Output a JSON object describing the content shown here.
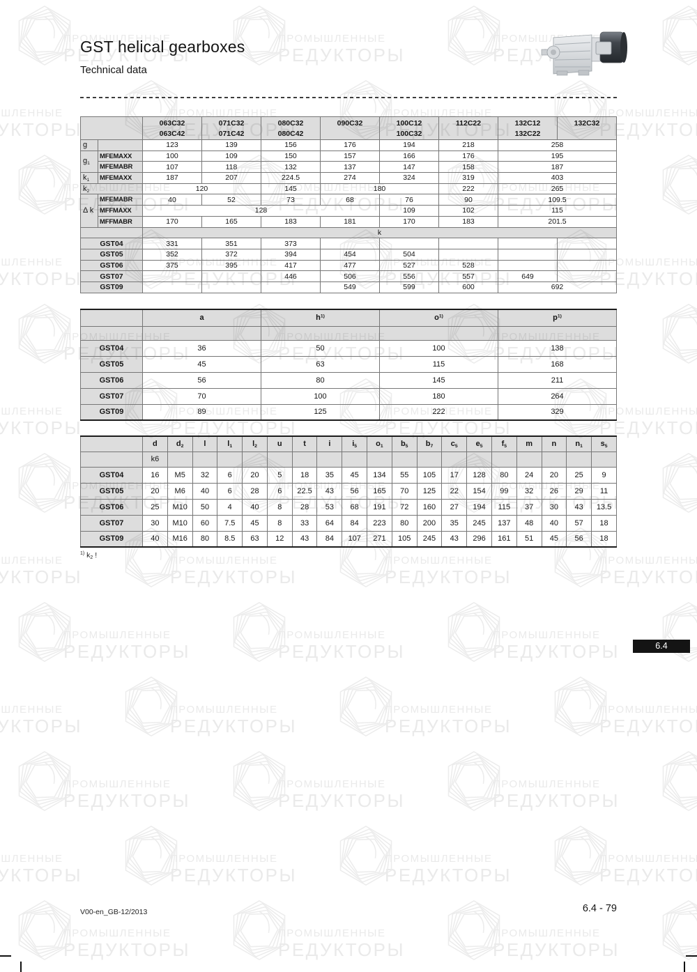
{
  "page": {
    "title": "GST helical gearboxes",
    "subtitle": "Technical data",
    "section_badge": "6.4",
    "footer_left": "V00-en_GB-12/2013",
    "footer_right": "6.4 - 79",
    "footnote": {
      "sup": "1)",
      "base": "k",
      "sub": "2",
      "tail": " !"
    }
  },
  "watermark": {
    "line1": "ПРОМЫШЛЕННЫЕ",
    "line2": "РЕДУКТОРЫ"
  },
  "table1": {
    "widths": [
      25,
      64,
      0,
      0,
      0,
      0,
      0,
      0,
      0,
      0
    ],
    "head": 1,
    "rows": [
      [
        {
          "t": "",
          "s": 2,
          "c": "e"
        },
        {
          "t": "063C32\n063C42",
          "c": "h"
        },
        {
          "t": "071C32\n071C42",
          "c": "h"
        },
        {
          "t": "080C32\n080C42",
          "c": "h"
        },
        {
          "t": "090C32",
          "c": "h"
        },
        {
          "t": "100C12\n100C32",
          "c": "h"
        },
        {
          "t": "112C22",
          "c": "h"
        },
        {
          "t": "132C12\n132C22",
          "c": "h"
        },
        {
          "t": "132C32",
          "c": "h"
        }
      ],
      [
        {
          "b": "g",
          "c": "l"
        },
        {
          "t": "",
          "c": "s"
        },
        "123",
        "139",
        "156",
        "176",
        "194",
        "218",
        {
          "t": "258",
          "s": 2
        }
      ],
      [
        {
          "b": "g",
          "sb": "1",
          "c": "l",
          "r": 2
        },
        {
          "t": "MFEMAXX",
          "c": "s"
        },
        "100",
        "109",
        "150",
        "157",
        "166",
        "176",
        {
          "t": "195",
          "s": 2
        }
      ],
      [
        {
          "t": "MFEMABR",
          "c": "s"
        },
        "107",
        "118",
        "132",
        "137",
        "147",
        "158",
        {
          "t": "187",
          "s": 2
        }
      ],
      [
        {
          "b": "k",
          "sb": "1",
          "c": "l"
        },
        {
          "t": "MFEMAXX",
          "c": "s"
        },
        "187",
        "207",
        "224.5",
        "274",
        "324",
        "319",
        {
          "t": "403",
          "s": 2
        }
      ],
      [
        {
          "b": "k",
          "sb": "2",
          "c": "l",
          "s": 2
        },
        {
          "t": "120",
          "s": 2
        },
        "145",
        {
          "t": "180",
          "s": 2
        },
        "222",
        {
          "t": "265",
          "s": 2
        }
      ],
      [
        {
          "b": "Δ k",
          "c": "l",
          "r": 3
        },
        {
          "t": "MFEMABR",
          "c": "s"
        },
        "40",
        "52",
        "73",
        "68",
        "76",
        "90",
        {
          "t": "109.5",
          "s": 2
        }
      ],
      [
        {
          "t": "MFFMAXX",
          "c": "s"
        },
        {
          "t": "128",
          "s": 4
        },
        "109",
        "102",
        {
          "t": "115",
          "s": 2
        }
      ],
      [
        {
          "t": "MFFMABR",
          "c": "s"
        },
        "170",
        "165",
        "183",
        "181",
        "170",
        "183",
        {
          "t": "201.5",
          "s": 2
        }
      ],
      [
        {
          "t": "",
          "s": 2,
          "c": "e"
        },
        {
          "t": "k",
          "s": 8,
          "c": "k"
        }
      ],
      [
        {
          "t": "GST04",
          "s": 2,
          "c": "g"
        },
        "331",
        "351",
        "373",
        "",
        "",
        "",
        "",
        ""
      ],
      [
        {
          "t": "GST05",
          "s": 2,
          "c": "g"
        },
        "352",
        "372",
        "394",
        "454",
        "504",
        "",
        "",
        ""
      ],
      [
        {
          "t": "GST06",
          "s": 2,
          "c": "g"
        },
        "375",
        "395",
        "417",
        "477",
        "527",
        "528",
        "",
        ""
      ],
      [
        {
          "t": "GST07",
          "s": 2,
          "c": "g"
        },
        "",
        "",
        "446",
        "506",
        "556",
        "557",
        "649",
        ""
      ],
      [
        {
          "t": "GST09",
          "s": 2,
          "c": "g"
        },
        "",
        "",
        "",
        "549",
        "599",
        "600",
        {
          "t": "692",
          "s": 2
        }
      ]
    ]
  },
  "table2": {
    "widths": [
      89,
      170,
      170,
      170,
      0
    ],
    "head": 2,
    "rows": [
      [
        {
          "t": "",
          "c": "e"
        },
        {
          "b": "a",
          "c": "h2"
        },
        {
          "b": "h",
          "sp": "1)",
          "c": "h2"
        },
        {
          "b": "o",
          "sp": "1)",
          "c": "h2"
        },
        {
          "b": "p",
          "sp": "1)",
          "c": "h2"
        }
      ],
      [
        {
          "t": "",
          "c": "e"
        },
        {
          "t": "",
          "c": "e"
        },
        {
          "t": "",
          "c": "e"
        },
        {
          "t": "",
          "c": "e"
        },
        {
          "t": "",
          "c": "e"
        }
      ],
      [
        {
          "t": "GST04",
          "c": "g"
        },
        "36",
        "50",
        "100",
        "138"
      ],
      [
        {
          "t": "GST05",
          "c": "g"
        },
        "45",
        "63",
        "115",
        "168"
      ],
      [
        {
          "t": "GST06",
          "c": "g"
        },
        "56",
        "80",
        "145",
        "211"
      ],
      [
        {
          "t": "GST07",
          "c": "g"
        },
        "70",
        "100",
        "180",
        "264"
      ],
      [
        {
          "t": "GST09",
          "c": "g"
        },
        "89",
        "125",
        "222",
        "329"
      ]
    ]
  },
  "table3": {
    "widths": [
      89,
      0,
      0,
      0,
      0,
      0,
      0,
      0,
      0,
      0,
      0,
      0,
      0,
      0,
      0,
      0,
      0,
      0,
      0,
      0
    ],
    "head": 2,
    "rows": [
      [
        {
          "t": "",
          "c": "e"
        },
        {
          "b": "d",
          "c": "h2"
        },
        {
          "b": "d",
          "sb": "2",
          "c": "h2"
        },
        {
          "b": "l",
          "c": "h2"
        },
        {
          "b": "l",
          "sb": "1",
          "c": "h2"
        },
        {
          "b": "l",
          "sb": "2",
          "c": "h2"
        },
        {
          "b": "u",
          "c": "h2"
        },
        {
          "b": "t",
          "c": "h2"
        },
        {
          "b": "i",
          "c": "h2"
        },
        {
          "b": "i",
          "sb": "5",
          "c": "h2"
        },
        {
          "b": "o",
          "sb": "1",
          "c": "h2"
        },
        {
          "b": "b",
          "sb": "5",
          "c": "h2"
        },
        {
          "b": "b",
          "sb": "7",
          "c": "h2"
        },
        {
          "b": "c",
          "sb": "5",
          "c": "h2"
        },
        {
          "b": "e",
          "sb": "5",
          "c": "h2"
        },
        {
          "b": "f",
          "sb": "5",
          "c": "h2"
        },
        {
          "b": "m",
          "c": "h2"
        },
        {
          "b": "n",
          "c": "h2"
        },
        {
          "b": "n",
          "sb": "1",
          "c": "h2"
        },
        {
          "b": "s",
          "sb": "5",
          "c": "h2"
        }
      ],
      [
        {
          "t": "",
          "c": "e"
        },
        {
          "t": "k6",
          "c": "h3"
        },
        {
          "t": "",
          "c": "e"
        },
        {
          "t": "",
          "c": "e"
        },
        {
          "t": "",
          "c": "e"
        },
        {
          "t": "",
          "c": "e"
        },
        {
          "t": "",
          "c": "e"
        },
        {
          "t": "",
          "c": "e"
        },
        {
          "t": "",
          "c": "e"
        },
        {
          "t": "",
          "c": "e"
        },
        {
          "t": "",
          "c": "e"
        },
        {
          "t": "",
          "c": "e"
        },
        {
          "t": "",
          "c": "e"
        },
        {
          "t": "",
          "c": "e"
        },
        {
          "t": "",
          "c": "e"
        },
        {
          "t": "",
          "c": "e"
        },
        {
          "t": "",
          "c": "e"
        },
        {
          "t": "",
          "c": "e"
        },
        {
          "t": "",
          "c": "e"
        },
        {
          "t": "",
          "c": "e"
        }
      ],
      [
        {
          "t": "GST04",
          "c": "g"
        },
        "16",
        "M5",
        "32",
        "6",
        "20",
        "5",
        "18",
        "35",
        "45",
        "134",
        "55",
        "105",
        "17",
        "128",
        "80",
        "24",
        "20",
        "25",
        "9"
      ],
      [
        {
          "t": "GST05",
          "c": "g"
        },
        "20",
        "M6",
        "40",
        "6",
        "28",
        "6",
        "22.5",
        "43",
        "56",
        "165",
        "70",
        "125",
        "22",
        "154",
        "99",
        "32",
        "26",
        "29",
        "11"
      ],
      [
        {
          "t": "GST06",
          "c": "g"
        },
        "25",
        "M10",
        "50",
        "4",
        "40",
        "8",
        "28",
        "53",
        "68",
        "191",
        "72",
        "160",
        "27",
        "194",
        "115",
        "37",
        "30",
        "43",
        "13.5"
      ],
      [
        {
          "t": "GST07",
          "c": "g"
        },
        "30",
        "M10",
        "60",
        "7.5",
        "45",
        "8",
        "33",
        "64",
        "84",
        "223",
        "80",
        "200",
        "35",
        "245",
        "137",
        "48",
        "40",
        "57",
        "18"
      ],
      [
        {
          "t": "GST09",
          "c": "g"
        },
        "40",
        "M16",
        "80",
        "8.5",
        "63",
        "12",
        "43",
        "84",
        "107",
        "271",
        "105",
        "245",
        "43",
        "296",
        "161",
        "51",
        "45",
        "56",
        "18"
      ]
    ]
  }
}
